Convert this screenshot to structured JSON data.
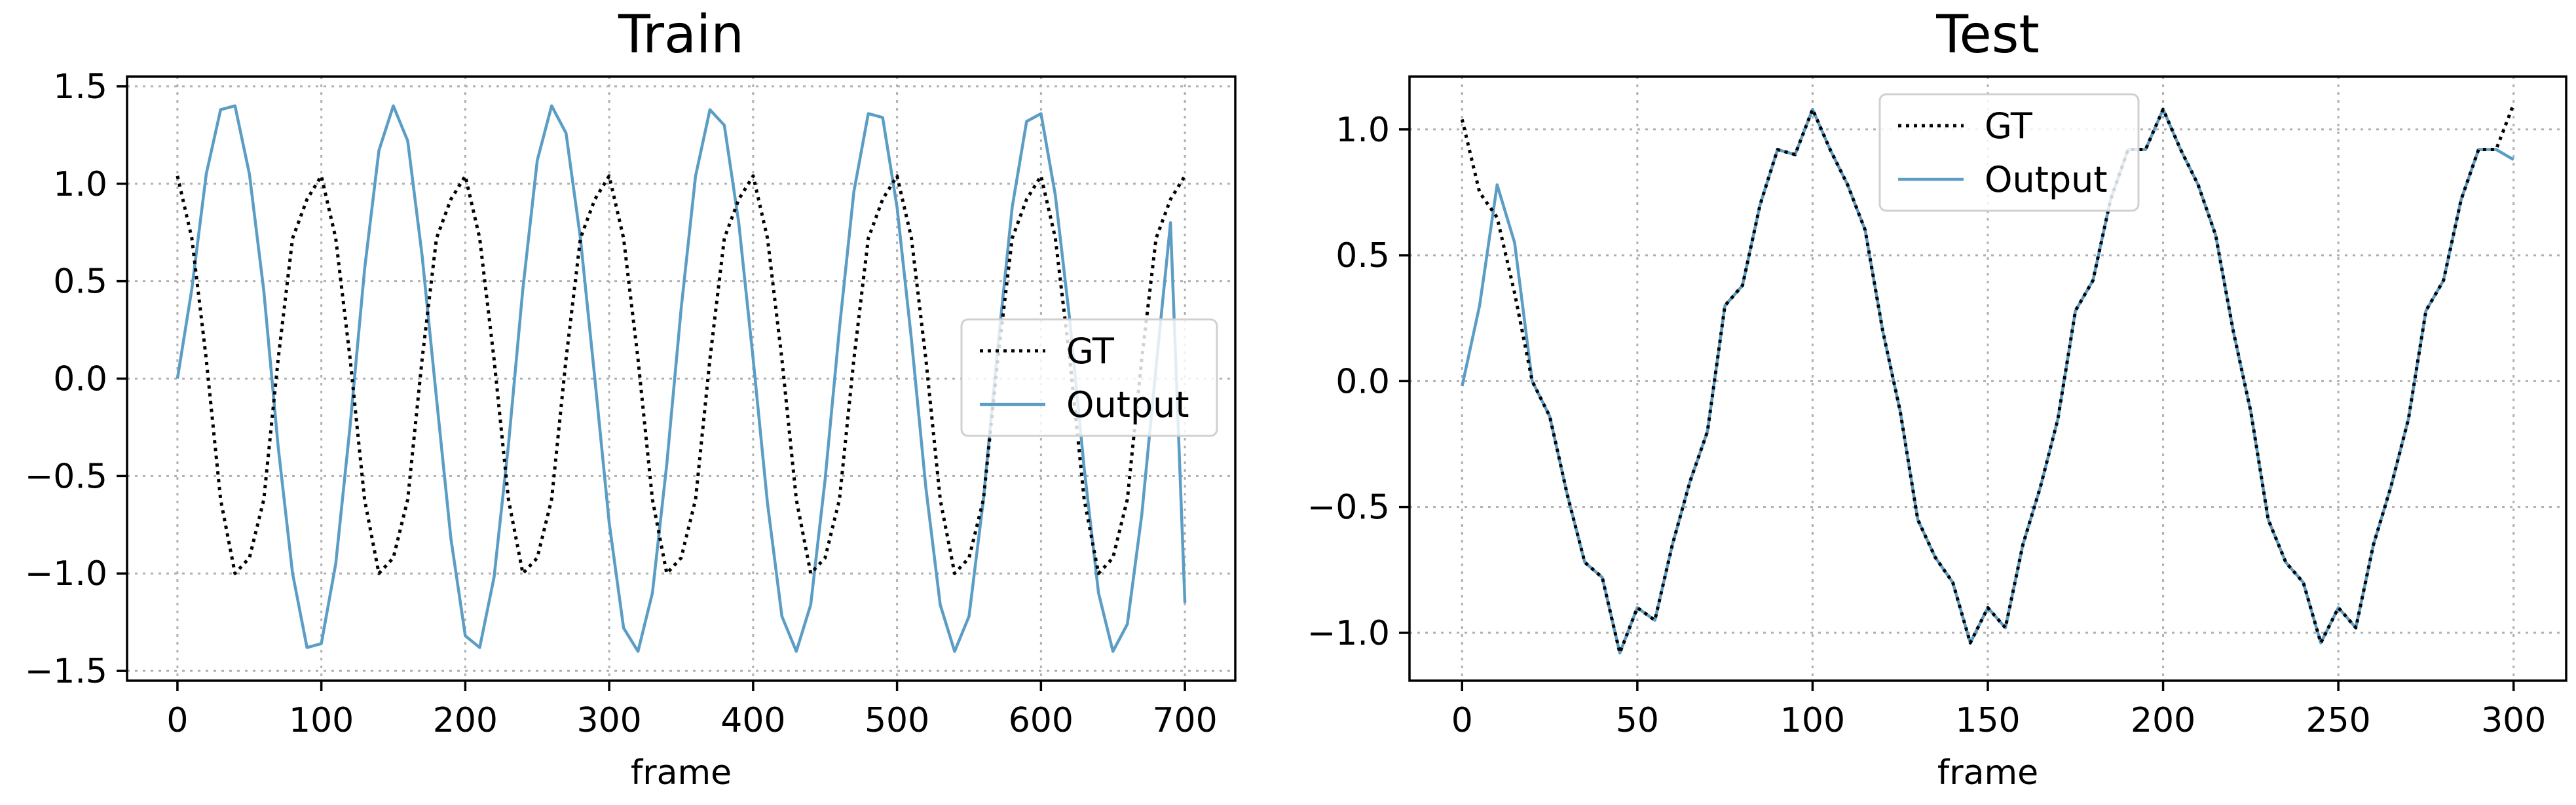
{
  "chart_data": [
    {
      "type": "line",
      "title": "Train",
      "xlabel": "frame",
      "ylabel": "",
      "xlim": [
        -35,
        735
      ],
      "ylim": [
        -1.55,
        1.55
      ],
      "xticks": [
        0,
        100,
        200,
        300,
        400,
        500,
        600,
        700
      ],
      "yticks": [
        -1.5,
        -1.0,
        -0.5,
        0.0,
        0.5,
        1.0,
        1.5
      ],
      "ytick_labels": [
        "−1.5",
        "−1.0",
        "−0.5",
        "0.0",
        "0.5",
        "1.0",
        "1.5"
      ],
      "grid": true,
      "legend": "center-right",
      "x": [
        0,
        10,
        20,
        30,
        40,
        50,
        60,
        70,
        80,
        90,
        100,
        110,
        120,
        130,
        140,
        150,
        160,
        170,
        180,
        190,
        200,
        210,
        220,
        230,
        240,
        250,
        260,
        270,
        280,
        290,
        300,
        310,
        320,
        330,
        340,
        350,
        360,
        370,
        380,
        390,
        400,
        410,
        420,
        430,
        440,
        450,
        460,
        470,
        480,
        490,
        500,
        510,
        520,
        530,
        540,
        550,
        560,
        570,
        580,
        590,
        600,
        610,
        620,
        630,
        640,
        650,
        660,
        670,
        680,
        690,
        700
      ],
      "series": [
        {
          "name": "GT",
          "color": "#000000",
          "style": "dotted",
          "values": [
            1.04,
            0.72,
            0.1,
            -0.62,
            -1.0,
            -0.92,
            -0.62,
            0.1,
            0.72,
            0.92,
            1.04,
            0.72,
            0.1,
            -0.62,
            -1.0,
            -0.92,
            -0.62,
            0.1,
            0.72,
            0.92,
            1.04,
            0.72,
            0.1,
            -0.62,
            -1.0,
            -0.92,
            -0.62,
            0.1,
            0.72,
            0.92,
            1.04,
            0.72,
            0.1,
            -0.62,
            -1.0,
            -0.92,
            -0.62,
            0.1,
            0.72,
            0.92,
            1.04,
            0.72,
            0.1,
            -0.62,
            -1.0,
            -0.92,
            -0.62,
            0.1,
            0.72,
            0.92,
            1.04,
            0.72,
            0.1,
            -0.62,
            -1.0,
            -0.92,
            -0.62,
            0.1,
            0.72,
            0.92,
            1.04,
            0.72,
            0.1,
            -0.62,
            -1.0,
            -0.92,
            -0.62,
            0.1,
            0.72,
            0.92,
            1.04
          ]
        },
        {
          "name": "Output",
          "color": "#5b9dc4",
          "style": "solid",
          "values": [
            0.0,
            0.46,
            1.05,
            1.38,
            1.4,
            1.05,
            0.45,
            -0.35,
            -1.0,
            -1.38,
            -1.36,
            -0.95,
            -0.24,
            0.56,
            1.17,
            1.4,
            1.22,
            0.63,
            -0.1,
            -0.82,
            -1.32,
            -1.38,
            -1.02,
            -0.34,
            0.46,
            1.12,
            1.4,
            1.26,
            0.72,
            0.0,
            -0.74,
            -1.28,
            -1.4,
            -1.1,
            -0.44,
            0.36,
            1.04,
            1.38,
            1.3,
            0.8,
            0.1,
            -0.64,
            -1.22,
            -1.4,
            -1.16,
            -0.52,
            0.26,
            0.96,
            1.36,
            1.34,
            0.88,
            0.2,
            -0.56,
            -1.16,
            -1.4,
            -1.22,
            -0.62,
            0.16,
            0.88,
            1.32,
            1.36,
            0.94,
            0.3,
            -0.46,
            -1.1,
            -1.4,
            -1.26,
            -0.7,
            0.06,
            0.8,
            -1.15
          ]
        }
      ]
    },
    {
      "type": "line",
      "title": "Test",
      "xlabel": "frame",
      "ylabel": "",
      "xlim": [
        -15,
        315
      ],
      "ylim": [
        -1.19,
        1.21
      ],
      "xticks": [
        0,
        50,
        100,
        150,
        200,
        250,
        300
      ],
      "yticks": [
        -1.0,
        -0.5,
        0.0,
        0.5,
        1.0
      ],
      "ytick_labels": [
        "−1.0",
        "−0.5",
        "0.0",
        "0.5",
        "1.0"
      ],
      "grid": true,
      "legend": "top-center",
      "x": [
        0,
        5,
        10,
        15,
        20,
        25,
        30,
        35,
        40,
        45,
        50,
        55,
        60,
        65,
        70,
        75,
        80,
        85,
        90,
        95,
        100,
        105,
        110,
        115,
        120,
        125,
        130,
        135,
        140,
        145,
        150,
        155,
        160,
        165,
        170,
        175,
        180,
        185,
        190,
        195,
        200,
        205,
        210,
        215,
        220,
        225,
        230,
        235,
        240,
        245,
        250,
        255,
        260,
        265,
        270,
        275,
        280,
        285,
        290,
        295,
        300
      ],
      "series": [
        {
          "name": "GT",
          "color": "#000000",
          "style": "dotted",
          "values": [
            1.04,
            0.75,
            0.65,
            0.35,
            0.0,
            -0.14,
            -0.45,
            -0.72,
            -0.78,
            -1.08,
            -0.9,
            -0.95,
            -0.65,
            -0.4,
            -0.2,
            0.3,
            0.38,
            0.7,
            0.92,
            0.9,
            1.08,
            0.92,
            0.78,
            0.6,
            0.2,
            -0.12,
            -0.55,
            -0.7,
            -0.8,
            -1.04,
            -0.9,
            -0.98,
            -0.65,
            -0.42,
            -0.15,
            0.28,
            0.4,
            0.72,
            0.92,
            0.92,
            1.08,
            0.92,
            0.78,
            0.58,
            0.2,
            -0.12,
            -0.55,
            -0.72,
            -0.8,
            -1.04,
            -0.9,
            -0.98,
            -0.65,
            -0.42,
            -0.15,
            0.28,
            0.4,
            0.72,
            0.92,
            0.92,
            1.1
          ]
        },
        {
          "name": "Output",
          "color": "#5b9dc4",
          "style": "solid",
          "values": [
            -0.02,
            0.3,
            0.78,
            0.55,
            0.0,
            -0.14,
            -0.45,
            -0.72,
            -0.78,
            -1.08,
            -0.9,
            -0.95,
            -0.65,
            -0.4,
            -0.2,
            0.3,
            0.38,
            0.7,
            0.92,
            0.9,
            1.08,
            0.92,
            0.78,
            0.6,
            0.2,
            -0.12,
            -0.55,
            -0.7,
            -0.8,
            -1.04,
            -0.9,
            -0.98,
            -0.65,
            -0.42,
            -0.15,
            0.28,
            0.4,
            0.72,
            0.92,
            0.92,
            1.08,
            0.92,
            0.78,
            0.58,
            0.2,
            -0.12,
            -0.55,
            -0.72,
            -0.8,
            -1.04,
            -0.9,
            -0.98,
            -0.65,
            -0.42,
            -0.15,
            0.28,
            0.4,
            0.72,
            0.92,
            0.92,
            0.88
          ]
        }
      ]
    }
  ]
}
